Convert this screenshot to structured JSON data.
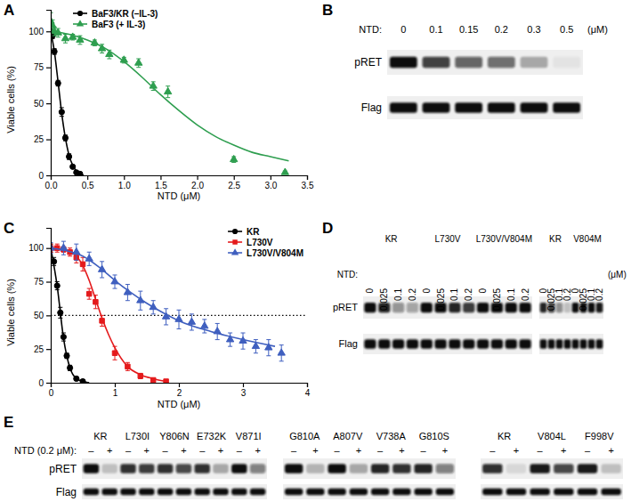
{
  "chart_data": [
    {
      "panel": "A",
      "type": "scatter",
      "x_label": "NTD (μM)",
      "y_label": "Viable cells (%)",
      "xlim": [
        0,
        3.5
      ],
      "xticks": [
        {
          "value": 0,
          "label": "0.0"
        },
        0.5,
        {
          "value": 1,
          "label": "1.0"
        },
        1.5,
        {
          "value": 2,
          "label": "2.0"
        },
        2.5,
        {
          "value": 3,
          "label": "3.0"
        },
        3.5
      ],
      "ylim": [
        0,
        115
      ],
      "yticks": [
        0,
        25,
        50,
        75,
        100
      ],
      "legend": "top-left",
      "series": [
        {
          "name": "BaF3/KR (–IL-3)",
          "color": "#000000",
          "marker": "circle",
          "x": [
            0,
            0.025,
            0.05,
            0.1,
            0.15,
            0.2,
            0.25,
            0.3,
            0.35,
            0.4
          ],
          "values": [
            100,
            97,
            86,
            64,
            44,
            26,
            13,
            6,
            2,
            1
          ],
          "errors": [
            3,
            2,
            2,
            2,
            3,
            2,
            2,
            1,
            1,
            1
          ],
          "fit_x": [
            0,
            0.05,
            0.1,
            0.15,
            0.2,
            0.25,
            0.3,
            0.35,
            0.4,
            0.45
          ],
          "fit_values": [
            100,
            86,
            65,
            43,
            26,
            14,
            7,
            3,
            1,
            0
          ]
        },
        {
          "name": "BaF3 (+ IL-3)",
          "color": "#2e9e4f",
          "marker": "triangle",
          "x": [
            0,
            0.025,
            0.05,
            0.1,
            0.2,
            0.3,
            0.4,
            0.6,
            0.7,
            0.8,
            1.0,
            1.2,
            1.4,
            1.6,
            2.5,
            3.2
          ],
          "values": [
            107,
            104,
            100,
            99,
            95,
            96,
            94,
            92,
            88,
            84,
            80,
            78,
            62,
            58,
            11,
            2
          ],
          "errors": [
            6,
            4,
            3,
            3,
            3,
            2,
            3,
            2,
            3,
            3,
            2,
            3,
            3,
            4,
            2,
            1
          ],
          "fit_x": [
            0,
            0.25,
            0.5,
            0.75,
            1.0,
            1.25,
            1.5,
            1.75,
            2.0,
            2.25,
            2.5,
            2.75,
            3.0,
            3.25
          ],
          "fit_values": [
            100,
            98,
            94,
            88,
            79,
            68,
            56,
            45,
            35,
            27,
            21,
            16,
            13,
            10
          ]
        }
      ]
    },
    {
      "panel": "C",
      "type": "scatter",
      "x_label": "NTD (μM)",
      "y_label": "Viable cells (%)",
      "xlim": [
        0,
        4
      ],
      "xticks": [
        0,
        1,
        2,
        3,
        4
      ],
      "ylim": [
        0,
        115
      ],
      "yticks": [
        0,
        25,
        50,
        75,
        100
      ],
      "legend": "top-right",
      "reference_line": 50,
      "series": [
        {
          "name": "KR",
          "color": "#000000",
          "marker": "circle",
          "x": [
            0,
            0.05,
            0.1,
            0.15,
            0.2,
            0.25,
            0.3,
            0.4,
            0.5
          ],
          "values": [
            100,
            90,
            72,
            52,
            34,
            20,
            11,
            3,
            1
          ],
          "errors": [
            3,
            3,
            3,
            4,
            3,
            2,
            2,
            1,
            1
          ],
          "fit_x": [
            0,
            0.1,
            0.2,
            0.3,
            0.4,
            0.5,
            0.6
          ],
          "fit_values": [
            100,
            72,
            33,
            11,
            3,
            1,
            0
          ]
        },
        {
          "name": "L730V",
          "color": "#e41a1c",
          "marker": "square",
          "x": [
            0,
            0.1,
            0.2,
            0.3,
            0.4,
            0.5,
            0.6,
            0.7,
            0.8,
            1.0,
            1.2,
            1.4,
            1.6,
            1.8
          ],
          "values": [
            100,
            100,
            99,
            97,
            93,
            88,
            66,
            60,
            46,
            22,
            12,
            5,
            2,
            1
          ],
          "errors": [
            3,
            3,
            2,
            3,
            4,
            5,
            4,
            5,
            4,
            5,
            3,
            2,
            1,
            1
          ],
          "fit_x": [
            0,
            0.2,
            0.4,
            0.5,
            0.6,
            0.7,
            0.8,
            0.9,
            1.0,
            1.2,
            1.4,
            1.6,
            1.8
          ],
          "fit_values": [
            100,
            99,
            94,
            87,
            76,
            62,
            48,
            36,
            26,
            12,
            6,
            3,
            1
          ]
        },
        {
          "name": "L730V/V804M",
          "color": "#3f5fbf",
          "marker": "triangle",
          "x": [
            0,
            0.2,
            0.4,
            0.6,
            0.8,
            1.0,
            1.2,
            1.4,
            1.6,
            1.8,
            2.0,
            2.2,
            2.4,
            2.6,
            2.8,
            3.0,
            3.2,
            3.4,
            3.6
          ],
          "values": [
            100,
            100,
            97,
            92,
            84,
            75,
            67,
            61,
            56,
            49,
            47,
            45,
            42,
            38,
            32,
            31,
            27,
            26,
            22
          ],
          "errors": [
            4,
            5,
            6,
            5,
            6,
            5,
            6,
            7,
            5,
            6,
            7,
            6,
            5,
            6,
            5,
            6,
            5,
            6,
            6
          ],
          "fit_x": [
            0,
            0.25,
            0.5,
            0.75,
            1.0,
            1.25,
            1.5,
            1.75,
            2.0,
            2.5,
            3.0,
            3.5
          ],
          "fit_values": [
            100,
            98,
            94,
            86,
            76,
            67,
            59,
            52,
            46,
            38,
            32,
            27
          ]
        }
      ]
    }
  ],
  "blots": [
    {
      "panel": "B",
      "treatment_label": "NTD:",
      "unit": "(μM)",
      "rows": [
        "pRET",
        "Flag"
      ],
      "membranes": [
        {
          "groups": [
            {
              "lanes": [
                0,
                0.1,
                0.15,
                0.2,
                0.3,
                0.5
              ],
              "intensity": [
                [
                  1,
                  0.78,
                  0.62,
                  0.58,
                  0.3,
                  0.05
                ],
                [
                  1,
                  1,
                  1,
                  1,
                  1,
                  1
                ]
              ]
            }
          ]
        }
      ]
    },
    {
      "panel": "D",
      "treatment_label": "NTD:",
      "unit": "(μM)",
      "rows": [
        "pRET",
        "Flag"
      ],
      "membranes": [
        {
          "groups": [
            {
              "label": "KR",
              "lanes": [
                0,
                0.025,
                0.1,
                0.2
              ],
              "intensity": [
                [
                  1,
                  0.9,
                  0.42,
                  0.35
                ],
                [
                  1,
                  1,
                  1,
                  1
                ]
              ]
            },
            {
              "label": "L730V",
              "lanes": [
                0,
                0.025,
                0.1,
                0.2
              ],
              "intensity": [
                [
                  1,
                  1,
                  0.9,
                  0.8
                ],
                [
                  1,
                  1,
                  1,
                  1
                ]
              ]
            },
            {
              "label": "L730V/V804M",
              "lanes": [
                0,
                0.025,
                0.1,
                0.2
              ],
              "intensity": [
                [
                  1,
                  1,
                  1,
                  1
                ],
                [
                  1,
                  1,
                  1,
                  1
                ]
              ]
            }
          ]
        },
        {
          "groups": [
            {
              "label": "KR",
              "lanes": [
                0,
                0.025,
                0.1,
                0.2
              ],
              "intensity": [
                [
                  0.9,
                  0.8,
                  0.45,
                  0.2
                ],
                [
                  1,
                  1,
                  1,
                  1
                ]
              ]
            },
            {
              "label": "V804M",
              "lanes": [
                0,
                0.025,
                0.1,
                0.2
              ],
              "intensity": [
                [
                  1,
                  1,
                  1,
                  0.95
                ],
                [
                  1,
                  1,
                  1,
                  1
                ]
              ]
            }
          ]
        }
      ]
    },
    {
      "panel": "E",
      "treatment_label": "NTD (0.2 μM):",
      "rows": [
        "pRET",
        "Flag"
      ],
      "membranes": [
        {
          "groups": [
            {
              "label": "KR",
              "lanes": [
                "–",
                "+"
              ],
              "intensity": [
                [
                  1,
                  0.2
                ],
                [
                  1,
                  1
                ]
              ]
            },
            {
              "label": "L730I",
              "lanes": [
                "–",
                "+"
              ],
              "intensity": [
                [
                  0.85,
                  0.8
                ],
                [
                  1,
                  1
                ]
              ]
            },
            {
              "label": "Y806N",
              "lanes": [
                "–",
                "+"
              ],
              "intensity": [
                [
                  0.85,
                  0.75
                ],
                [
                  1,
                  1
                ]
              ]
            },
            {
              "label": "E732K",
              "lanes": [
                "–",
                "+"
              ],
              "intensity": [
                [
                  0.85,
                  0.3
                ],
                [
                  1,
                  1
                ]
              ]
            },
            {
              "label": "V871I",
              "lanes": [
                "–",
                "+"
              ],
              "intensity": [
                [
                  1,
                  0.5
                ],
                [
                  1,
                  1
                ]
              ]
            }
          ]
        },
        {
          "groups": [
            {
              "label": "G810A",
              "lanes": [
                "–",
                "+"
              ],
              "intensity": [
                [
                  1,
                  0.25
                ],
                [
                  1,
                  1
                ]
              ]
            },
            {
              "label": "A807V",
              "lanes": [
                "–",
                "+"
              ],
              "intensity": [
                [
                  1,
                  0.3
                ],
                [
                  1,
                  1
                ]
              ]
            },
            {
              "label": "V738A",
              "lanes": [
                "–",
                "+"
              ],
              "intensity": [
                [
                  0.9,
                  0.85
                ],
                [
                  1,
                  1
                ]
              ]
            },
            {
              "label": "G810S",
              "lanes": [
                "–",
                "+"
              ],
              "intensity": [
                [
                  0.9,
                  0.5
                ],
                [
                  1,
                  1
                ]
              ]
            }
          ]
        },
        {
          "groups": [
            {
              "label": "KR",
              "lanes": [
                "–",
                "+"
              ],
              "intensity": [
                [
                  0.85,
                  0.1
                ],
                [
                  1,
                  1
                ]
              ]
            },
            {
              "label": "V804L",
              "lanes": [
                "–",
                "+"
              ],
              "intensity": [
                [
                  0.95,
                  0.75
                ],
                [
                  1,
                  1
                ]
              ]
            },
            {
              "label": "F998V",
              "lanes": [
                "–",
                "+"
              ],
              "intensity": [
                [
                  0.95,
                  0.2
                ],
                [
                  1,
                  1
                ]
              ]
            }
          ]
        }
      ]
    }
  ]
}
